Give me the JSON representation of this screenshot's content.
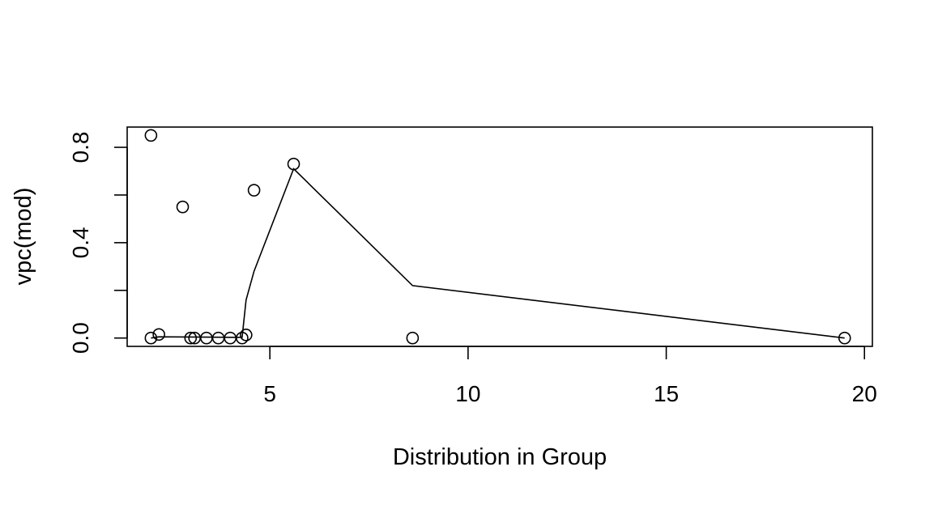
{
  "chart_data": {
    "type": "scatter",
    "xlabel": "Distribution in Group",
    "ylabel": "vpc(mod)",
    "xlim": [
      1.4,
      20.2
    ],
    "ylim": [
      -0.035,
      0.885
    ],
    "x_ticks": [
      5,
      10,
      15,
      20
    ],
    "x_tick_labels": [
      "5",
      "10",
      "15",
      "20"
    ],
    "y_ticks": [
      0.0,
      0.2,
      0.4,
      0.6,
      0.8
    ],
    "y_tick_labels": [
      "0.0",
      "",
      "0.4",
      "",
      "0.8"
    ],
    "grid": false,
    "legend": false,
    "points": [
      {
        "x": 2.0,
        "y": 0.85
      },
      {
        "x": 2.0,
        "y": 0.0
      },
      {
        "x": 2.2,
        "y": 0.015
      },
      {
        "x": 2.8,
        "y": 0.55
      },
      {
        "x": 3.0,
        "y": 0.0
      },
      {
        "x": 3.1,
        "y": 0.0
      },
      {
        "x": 3.4,
        "y": 0.0
      },
      {
        "x": 3.7,
        "y": 0.0
      },
      {
        "x": 4.0,
        "y": 0.0
      },
      {
        "x": 4.3,
        "y": 0.0
      },
      {
        "x": 4.4,
        "y": 0.013
      },
      {
        "x": 4.6,
        "y": 0.62
      },
      {
        "x": 5.6,
        "y": 0.73
      },
      {
        "x": 8.6,
        "y": 0.0
      },
      {
        "x": 19.5,
        "y": 0.0
      }
    ],
    "line": {
      "x": [
        2.0,
        2.2,
        4.0,
        4.3,
        4.4,
        4.6,
        5.6,
        8.6,
        19.5
      ],
      "y": [
        0.0,
        0.005,
        0.003,
        0.003,
        0.16,
        0.28,
        0.71,
        0.22,
        0.0
      ]
    }
  }
}
